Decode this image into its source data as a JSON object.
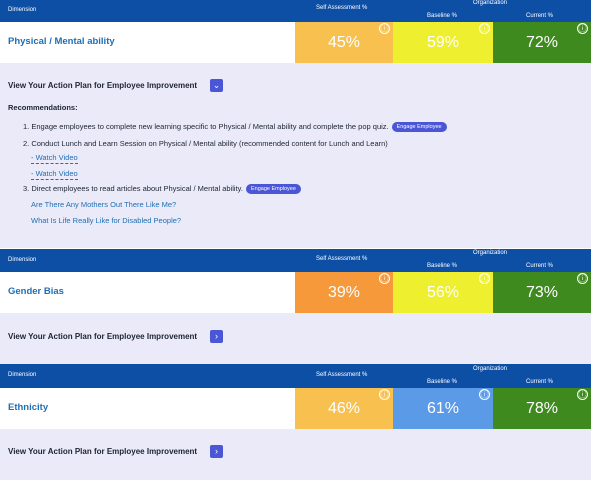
{
  "header": {
    "dimension_label": "Dimension",
    "self_assessment_label": "Self Assessment %",
    "organization_label": "Organization",
    "baseline_label": "Baseline %",
    "current_label": "Current %"
  },
  "info_glyph": "ⓘ",
  "dimensions": [
    {
      "name": "Physical / Mental ability",
      "self_assessment": "45%",
      "baseline": "59%",
      "current": "72%",
      "colors": {
        "self": "#f8c04e",
        "baseline": "#eef02f",
        "current": "#3e8a1f"
      },
      "action_plan_label": "View Your Action Plan for Employee Improvement",
      "action_toggle_icon": "chevron-down-icon",
      "action_toggle_glyph": "⌄",
      "expanded": true,
      "recommendations_title": "Recommendations:",
      "recommendations": [
        {
          "text": "1. Engage employees to complete new learning specific to Physical / Mental ability and complete the pop quiz.",
          "button": "Engage Employee"
        },
        {
          "text": "2. Conduct Lunch and Learn Session on Physical / Mental ability (recommended content for Lunch and Learn)"
        },
        {
          "text": "3. Direct employees to read articles about Physical / Mental ability.",
          "button": "Engage Employee"
        }
      ],
      "videos": [
        "- Watch Video",
        "- Watch Video"
      ],
      "articles": [
        "Are There Any Mothers Out There Like Me?",
        "What Is Life Really Like for Disabled People?"
      ]
    },
    {
      "name": "Gender Bias",
      "self_assessment": "39%",
      "baseline": "56%",
      "current": "73%",
      "colors": {
        "self": "#f5993a",
        "baseline": "#eef02f",
        "current": "#3e8a1f"
      },
      "action_plan_label": "View Your Action Plan for Employee Improvement",
      "action_toggle_icon": "chevron-right-icon",
      "action_toggle_glyph": "›",
      "expanded": false
    },
    {
      "name": "Ethnicity",
      "self_assessment": "46%",
      "baseline": "61%",
      "current": "78%",
      "colors": {
        "self": "#f8c04e",
        "baseline": "#5b9ae6",
        "current": "#3e8a1f"
      },
      "action_plan_label": "View Your Action Plan for Employee Improvement",
      "action_toggle_icon": "chevron-right-icon",
      "action_toggle_glyph": "›",
      "expanded": false
    }
  ]
}
